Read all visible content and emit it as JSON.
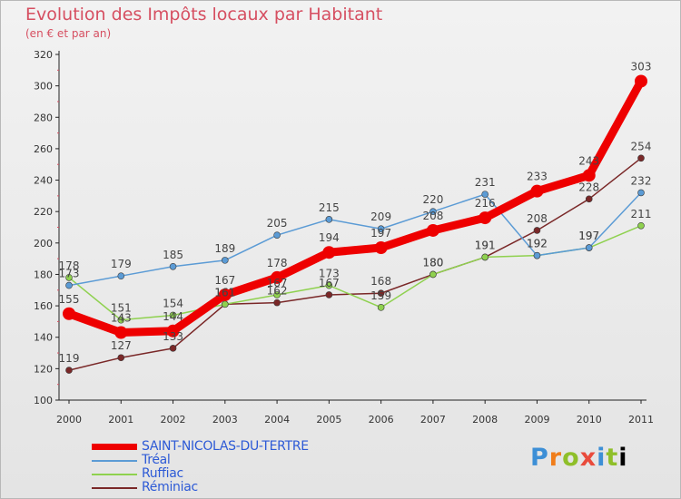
{
  "header": {
    "title": "Evolution des Impôts locaux par Habitant",
    "subtitle": "(en € et par an)"
  },
  "brand": {
    "letters": [
      "P",
      "r",
      "o",
      "x",
      "i",
      "t",
      "i"
    ]
  },
  "chart_data": {
    "type": "line",
    "title": "Evolution des Impôts locaux par Habitant",
    "subtitle": "(en € et par an)",
    "xlabel": "",
    "ylabel": "",
    "x": [
      "2000",
      "2001",
      "2002",
      "2003",
      "2004",
      "2005",
      "2006",
      "2007",
      "2008",
      "2009",
      "2010",
      "2011"
    ],
    "ylim": [
      100,
      320
    ],
    "yticks": [
      100,
      120,
      140,
      160,
      180,
      200,
      220,
      240,
      260,
      280,
      300,
      320
    ],
    "grid": false,
    "legend_position": "bottom-left",
    "series": [
      {
        "name": "SAINT-NICOLAS-DU-TERTRE",
        "color": "#ee0000",
        "values": [
          155,
          143,
          144,
          167,
          178,
          194,
          197,
          208,
          216,
          233,
          243,
          303
        ],
        "labels": [
          "155",
          "143",
          "144",
          "167",
          "178",
          "194",
          "197",
          "208",
          "216",
          "233",
          "243",
          "303"
        ]
      },
      {
        "name": "Tréal",
        "color": "#5b9bd5",
        "values": [
          173,
          179,
          185,
          189,
          205,
          215,
          209,
          220,
          231,
          192,
          197,
          232
        ],
        "labels": [
          "173",
          "179",
          "185",
          "189",
          "205",
          "215",
          "209",
          "220",
          "231",
          "192",
          "197",
          "232"
        ]
      },
      {
        "name": "Ruffiac",
        "color": "#8fd14f",
        "values": [
          178,
          151,
          154,
          161,
          167,
          173,
          159,
          180,
          191,
          192,
          197,
          211
        ],
        "labels": [
          "178",
          "151",
          "154",
          "161",
          "167",
          "173",
          "159",
          "180",
          "191",
          "192",
          "197",
          "211"
        ]
      },
      {
        "name": "Réminiac",
        "color": "#7a2828",
        "values": [
          119,
          127,
          133,
          161,
          162,
          167,
          168,
          180,
          191,
          208,
          228,
          254
        ],
        "labels": [
          "119",
          "127",
          "133",
          "161",
          "162",
          "167",
          "168",
          "180",
          "191",
          "208",
          "228",
          "254"
        ]
      }
    ]
  }
}
